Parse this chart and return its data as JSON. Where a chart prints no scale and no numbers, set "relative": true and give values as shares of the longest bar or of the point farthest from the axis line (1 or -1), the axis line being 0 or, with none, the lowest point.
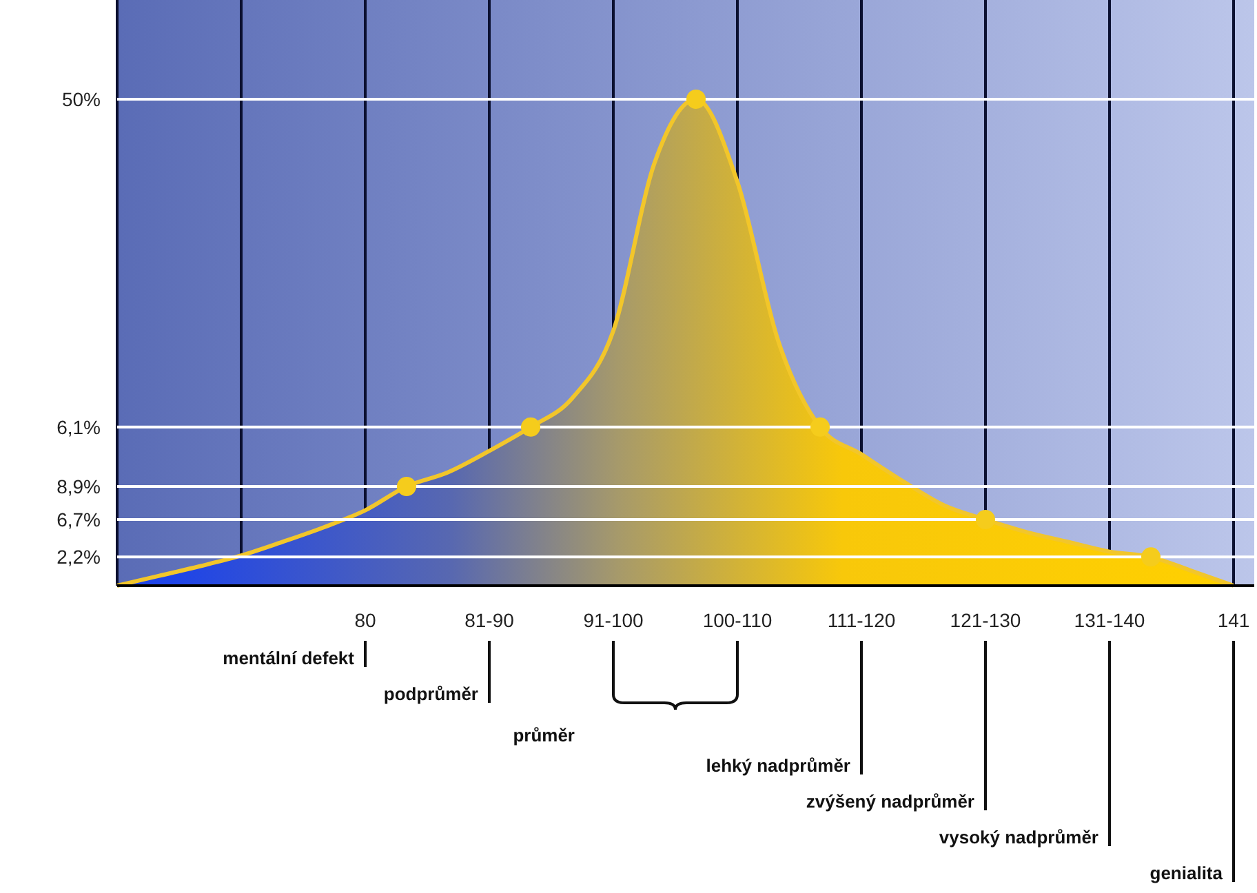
{
  "chart_data": {
    "type": "area",
    "relative": true,
    "categories": [
      null,
      null,
      null,
      null,
      null,
      null,
      "80",
      null,
      null,
      "81-90",
      null,
      null,
      "91-100",
      null,
      null,
      "100-110",
      null,
      null,
      "111-120",
      null,
      null,
      "121-130",
      null,
      null,
      "131-140",
      null,
      null,
      "141"
    ],
    "grid": "x",
    "series": [
      {
        "color": "#f2c62a",
        "values": [
          0,
          0.02,
          0.04,
          0.062,
          0.09,
          0.12,
          0.155,
          0.204,
          0.233,
          0.277,
          0.326,
          0.385,
          0.524,
          0.87,
          1.0,
          0.83,
          0.5,
          0.326,
          0.27,
          0.215,
          0.165,
          0.136,
          0.11,
          0.09,
          0.07,
          0.059,
          0.03,
          0
        ]
      },
      {
        "type": "scatter",
        "color": "#f5cc1c",
        "values": [
          null,
          null,
          null,
          null,
          null,
          null,
          null,
          0.204,
          null,
          null,
          0.326,
          null,
          null,
          null,
          1.0,
          null,
          null,
          0.326,
          null,
          null,
          null,
          0.136,
          null,
          null,
          null,
          0.059,
          null,
          null
        ]
      }
    ],
    "ref_lines": [
      {
        "axis": "y",
        "value": 1.0,
        "color": "#ffffff"
      },
      {
        "axis": "y",
        "value": 0.326,
        "color": "#ffffff"
      },
      {
        "axis": "y",
        "value": 0.204,
        "color": "#ffffff"
      },
      {
        "axis": "y",
        "value": 0.136,
        "color": "#ffffff"
      },
      {
        "axis": "y",
        "value": 0.059,
        "color": "#ffffff"
      }
    ],
    "annotations": [
      "50%",
      "6,1%",
      "8,9%",
      "6,7%",
      "2,2%",
      "mentální defekt",
      "podprůměr",
      "průměr",
      "lehký nadprůměr",
      "zvýšený nadprůměr",
      "vysoký nadprůměr",
      "genialita"
    ]
  }
}
